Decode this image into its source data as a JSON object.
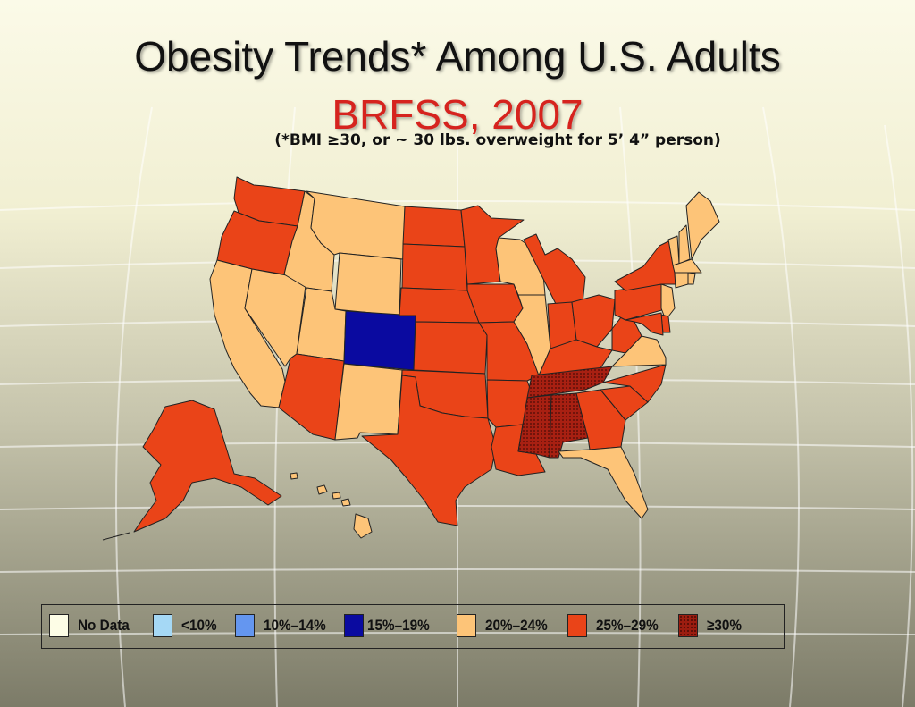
{
  "title": "Obesity Trends* Among U.S. Adults",
  "subtitle": "BRFSS, 2007",
  "note": "(*BMI ≥30, or ~ 30 lbs. overweight for 5’ 4” person)",
  "legend": [
    {
      "label": "No Data",
      "color": "#fdfde6"
    },
    {
      "label": "<10%",
      "color": "#a5d8f5"
    },
    {
      "label": "10%–14%",
      "color": "#6496f0"
    },
    {
      "label": "15%–19%",
      "color": "#0a0aa0"
    },
    {
      "label": "20%–24%",
      "color": "#fdc478"
    },
    {
      "label": "25%–29%",
      "color": "#ea4418"
    },
    {
      "label": "≥30%",
      "color": "#9c1d10"
    }
  ],
  "map_data": {
    "states": [
      {
        "state": "Washington",
        "category": "25%–29%"
      },
      {
        "state": "Oregon",
        "category": "25%–29%"
      },
      {
        "state": "California",
        "category": "20%–24%"
      },
      {
        "state": "Nevada",
        "category": "20%–24%"
      },
      {
        "state": "Idaho",
        "category": "20%–24%"
      },
      {
        "state": "Montana",
        "category": "20%–24%"
      },
      {
        "state": "Wyoming",
        "category": "20%–24%"
      },
      {
        "state": "Utah",
        "category": "20%–24%"
      },
      {
        "state": "Arizona",
        "category": "25%–29%"
      },
      {
        "state": "New Mexico",
        "category": "20%–24%"
      },
      {
        "state": "Colorado",
        "category": "15%–19%"
      },
      {
        "state": "North Dakota",
        "category": "25%–29%"
      },
      {
        "state": "South Dakota",
        "category": "25%–29%"
      },
      {
        "state": "Nebraska",
        "category": "25%–29%"
      },
      {
        "state": "Kansas",
        "category": "25%–29%"
      },
      {
        "state": "Oklahoma",
        "category": "25%–29%"
      },
      {
        "state": "Texas",
        "category": "25%–29%"
      },
      {
        "state": "Minnesota",
        "category": "25%–29%"
      },
      {
        "state": "Iowa",
        "category": "25%–29%"
      },
      {
        "state": "Missouri",
        "category": "25%–29%"
      },
      {
        "state": "Arkansas",
        "category": "25%–29%"
      },
      {
        "state": "Louisiana",
        "category": "25%–29%"
      },
      {
        "state": "Wisconsin",
        "category": "20%–24%"
      },
      {
        "state": "Illinois",
        "category": "20%–24%"
      },
      {
        "state": "Michigan",
        "category": "25%–29%"
      },
      {
        "state": "Indiana",
        "category": "25%–29%"
      },
      {
        "state": "Ohio",
        "category": "25%–29%"
      },
      {
        "state": "Kentucky",
        "category": "25%–29%"
      },
      {
        "state": "Tennessee",
        "category": "≥30%"
      },
      {
        "state": "Mississippi",
        "category": "≥30%"
      },
      {
        "state": "Alabama",
        "category": "≥30%"
      },
      {
        "state": "Georgia",
        "category": "25%–29%"
      },
      {
        "state": "Florida",
        "category": "20%–24%"
      },
      {
        "state": "South Carolina",
        "category": "25%–29%"
      },
      {
        "state": "North Carolina",
        "category": "25%–29%"
      },
      {
        "state": "Virginia",
        "category": "20%–24%"
      },
      {
        "state": "West Virginia",
        "category": "25%–29%"
      },
      {
        "state": "Pennsylvania",
        "category": "25%–29%"
      },
      {
        "state": "New York",
        "category": "25%–29%"
      },
      {
        "state": "New Jersey",
        "category": "20%–24%"
      },
      {
        "state": "Delaware",
        "category": "25%–29%"
      },
      {
        "state": "Maryland",
        "category": "25%–29%"
      },
      {
        "state": "Vermont",
        "category": "20%–24%"
      },
      {
        "state": "New Hampshire",
        "category": "20%–24%"
      },
      {
        "state": "Maine",
        "category": "20%–24%"
      },
      {
        "state": "Massachusetts",
        "category": "20%–24%"
      },
      {
        "state": "Connecticut",
        "category": "20%–24%"
      },
      {
        "state": "Rhode Island",
        "category": "20%–24%"
      },
      {
        "state": "Alaska",
        "category": "25%–29%"
      },
      {
        "state": "Hawaii",
        "category": "20%–24%"
      }
    ]
  }
}
